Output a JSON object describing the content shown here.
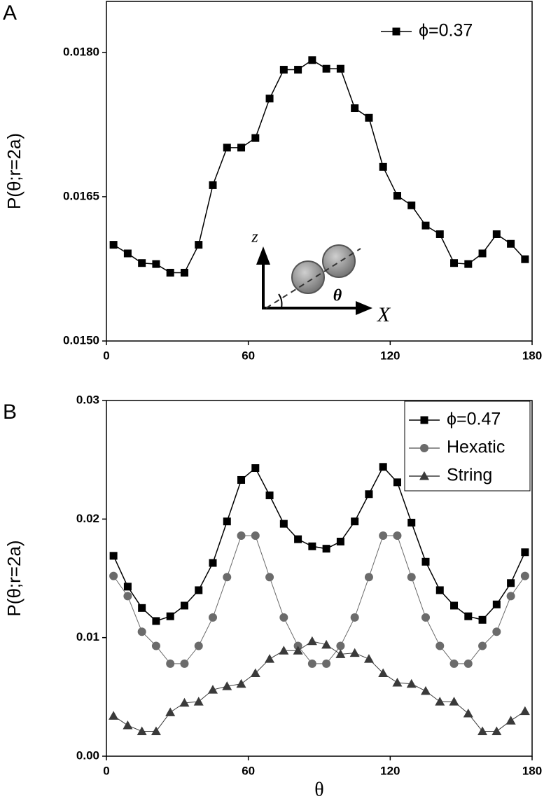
{
  "chart_data": [
    {
      "type": "line",
      "panel": "A",
      "ylabel": "P(θ;r=2a)",
      "x": [
        3,
        9,
        15,
        21,
        27,
        33,
        39,
        45,
        51,
        57,
        63,
        69,
        75,
        81,
        87,
        93,
        99,
        105,
        111,
        117,
        123,
        129,
        135,
        141,
        147,
        153,
        159,
        165,
        171,
        177
      ],
      "series": [
        {
          "name": "ϕ=0.37",
          "color": "#000000",
          "marker": "square",
          "values": [
            0.016,
            0.01591,
            0.01581,
            0.0158,
            0.01571,
            0.01571,
            0.016,
            0.01662,
            0.01701,
            0.01701,
            0.01711,
            0.01752,
            0.01782,
            0.01782,
            0.01792,
            0.01783,
            0.01783,
            0.01742,
            0.01732,
            0.01681,
            0.01651,
            0.01641,
            0.0162,
            0.01611,
            0.01581,
            0.0158,
            0.01591,
            0.01611,
            0.01601,
            0.01585
          ]
        }
      ],
      "xlim": [
        0,
        180
      ],
      "xticks": [
        0,
        60,
        120,
        180
      ],
      "ylim": [
        0.015,
        0.01853
      ],
      "yticks": [
        {
          "value": 0.015,
          "label": "0.0150"
        },
        {
          "value": 0.0165,
          "label": "0.0165"
        },
        {
          "value": 0.018,
          "label": "0.0180"
        }
      ],
      "legend": "upper right",
      "legend_frame": false,
      "annotations": [
        "z",
        "X",
        "θ"
      ]
    },
    {
      "type": "line",
      "panel": "B",
      "ylabel": "P(θ;r=2a)",
      "xlabel": "θ",
      "x": [
        3,
        9,
        15,
        21,
        27,
        33,
        39,
        45,
        51,
        57,
        63,
        69,
        75,
        81,
        87,
        93,
        99,
        105,
        111,
        117,
        123,
        129,
        135,
        141,
        147,
        153,
        159,
        165,
        171,
        177
      ],
      "series": [
        {
          "name": "ϕ=0.47",
          "color": "#000000",
          "marker": "square",
          "values": [
            0.0169,
            0.0143,
            0.0125,
            0.0114,
            0.0118,
            0.0127,
            0.014,
            0.0163,
            0.0198,
            0.0233,
            0.0243,
            0.022,
            0.0196,
            0.0183,
            0.0177,
            0.0175,
            0.0181,
            0.0198,
            0.0221,
            0.0244,
            0.0231,
            0.0197,
            0.0164,
            0.014,
            0.0127,
            0.0118,
            0.0115,
            0.0128,
            0.0146,
            0.0172
          ]
        },
        {
          "name": "Hexatic",
          "color": "#6b6b6b",
          "marker": "circle",
          "values": [
            0.0152,
            0.0135,
            0.0105,
            0.0093,
            0.0078,
            0.0078,
            0.0093,
            0.0117,
            0.0151,
            0.0186,
            0.0186,
            0.0151,
            0.0117,
            0.0093,
            0.0078,
            0.0078,
            0.0093,
            0.0117,
            0.0151,
            0.0186,
            0.0186,
            0.0151,
            0.0117,
            0.0093,
            0.0078,
            0.0078,
            0.0093,
            0.0105,
            0.0135,
            0.0152
          ]
        },
        {
          "name": "String",
          "color": "#3a3a3a",
          "marker": "triangle",
          "values": [
            0.0034,
            0.0026,
            0.0021,
            0.0021,
            0.0037,
            0.0045,
            0.0046,
            0.0056,
            0.0059,
            0.0061,
            0.007,
            0.0082,
            0.0089,
            0.0089,
            0.0097,
            0.0094,
            0.0086,
            0.0087,
            0.0082,
            0.007,
            0.0062,
            0.0061,
            0.0055,
            0.0046,
            0.0046,
            0.0036,
            0.0021,
            0.0021,
            0.003,
            0.0038
          ]
        }
      ],
      "xlim": [
        0,
        180
      ],
      "xticks": [
        0,
        60,
        120,
        180
      ],
      "ylim": [
        0,
        0.03
      ],
      "yticks": [
        {
          "value": 0,
          "label": "0.00"
        },
        {
          "value": 0.01,
          "label": "0.01"
        },
        {
          "value": 0.02,
          "label": "0.02"
        },
        {
          "value": 0.03,
          "label": "0.03"
        }
      ],
      "legend": "upper right",
      "legend_frame": true
    }
  ]
}
